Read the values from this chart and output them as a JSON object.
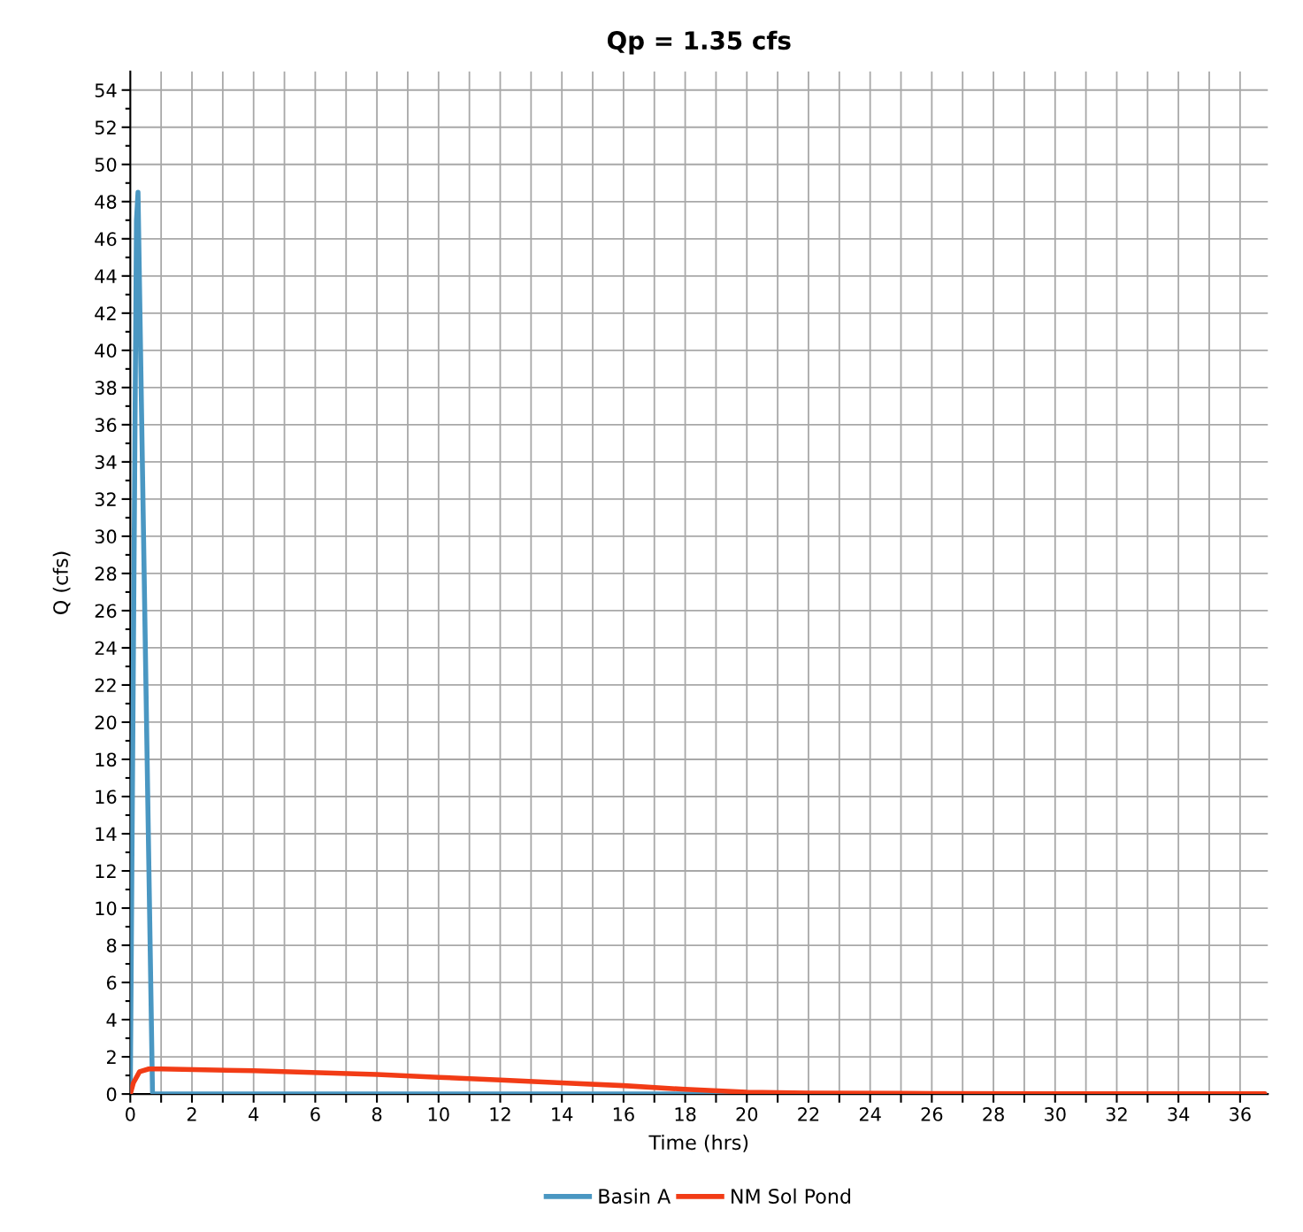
{
  "chart_data": {
    "type": "line",
    "title": "Qp = 1.35 cfs",
    "xlabel": "Time (hrs)",
    "ylabel": "Q (cfs)",
    "xlim": [
      0,
      36.9
    ],
    "ylim": [
      0,
      55
    ],
    "xticks": [
      0,
      {
        "value": 1,
        "label": null
      },
      2,
      {
        "value": 3,
        "label": null
      },
      4,
      {
        "value": 5,
        "label": null
      },
      6,
      {
        "value": 7,
        "label": null
      },
      8,
      {
        "value": 9,
        "label": null
      },
      10,
      {
        "value": 11,
        "label": null
      },
      12,
      {
        "value": 13,
        "label": null
      },
      14,
      {
        "value": 15,
        "label": null
      },
      16,
      {
        "value": 17,
        "label": null
      },
      18,
      {
        "value": 19,
        "label": null
      },
      20,
      {
        "value": 21,
        "label": null
      },
      22,
      {
        "value": 23,
        "label": null
      },
      24,
      {
        "value": 25,
        "label": null
      },
      26,
      {
        "value": 27,
        "label": null
      },
      28,
      {
        "value": 29,
        "label": null
      },
      30,
      {
        "value": 31,
        "label": null
      },
      32,
      {
        "value": 33,
        "label": null
      },
      34,
      {
        "value": 35,
        "label": null
      },
      36
    ],
    "yticks": [
      0,
      {
        "value": 1,
        "label": null
      },
      2,
      {
        "value": 3,
        "label": null
      },
      4,
      {
        "value": 5,
        "label": null
      },
      6,
      {
        "value": 7,
        "label": null
      },
      8,
      {
        "value": 9,
        "label": null
      },
      10,
      {
        "value": 11,
        "label": null
      },
      12,
      {
        "value": 13,
        "label": null
      },
      14,
      {
        "value": 15,
        "label": null
      },
      16,
      {
        "value": 17,
        "label": null
      },
      18,
      {
        "value": 19,
        "label": null
      },
      20,
      {
        "value": 21,
        "label": null
      },
      22,
      {
        "value": 23,
        "label": null
      },
      24,
      {
        "value": 25,
        "label": null
      },
      26,
      {
        "value": 27,
        "label": null
      },
      28,
      {
        "value": 29,
        "label": null
      },
      30,
      {
        "value": 31,
        "label": null
      },
      32,
      {
        "value": 33,
        "label": null
      },
      34,
      {
        "value": 35,
        "label": null
      },
      36,
      {
        "value": 37,
        "label": null
      },
      38,
      {
        "value": 39,
        "label": null
      },
      40,
      {
        "value": 41,
        "label": null
      },
      42,
      {
        "value": 43,
        "label": null
      },
      44,
      {
        "value": 45,
        "label": null
      },
      46,
      {
        "value": 47,
        "label": null
      },
      48,
      {
        "value": 49,
        "label": null
      },
      50,
      {
        "value": 51,
        "label": null
      },
      52,
      {
        "value": 53,
        "label": null
      },
      54
    ],
    "grid": true,
    "legend": "bottom",
    "marker": "none",
    "line_style": "solid",
    "series": [
      {
        "name": "Basin A",
        "color": "#4a97c2",
        "x": [
          0,
          0.2,
          0.25,
          0.72,
          0.75,
          36.8
        ],
        "values": [
          0,
          47,
          48.5,
          0.1,
          0,
          0
        ]
      },
      {
        "name": "NM Sol Pond",
        "color": "#f23c16",
        "x": [
          0,
          0.1,
          0.3,
          0.6,
          1,
          4,
          8,
          10,
          12,
          14,
          16,
          18,
          20,
          22,
          26,
          30,
          36.8
        ],
        "values": [
          0,
          0.6,
          1.2,
          1.35,
          1.35,
          1.25,
          1.05,
          0.9,
          0.75,
          0.6,
          0.45,
          0.25,
          0.1,
          0.05,
          0.03,
          0.02,
          0.01
        ]
      }
    ]
  }
}
